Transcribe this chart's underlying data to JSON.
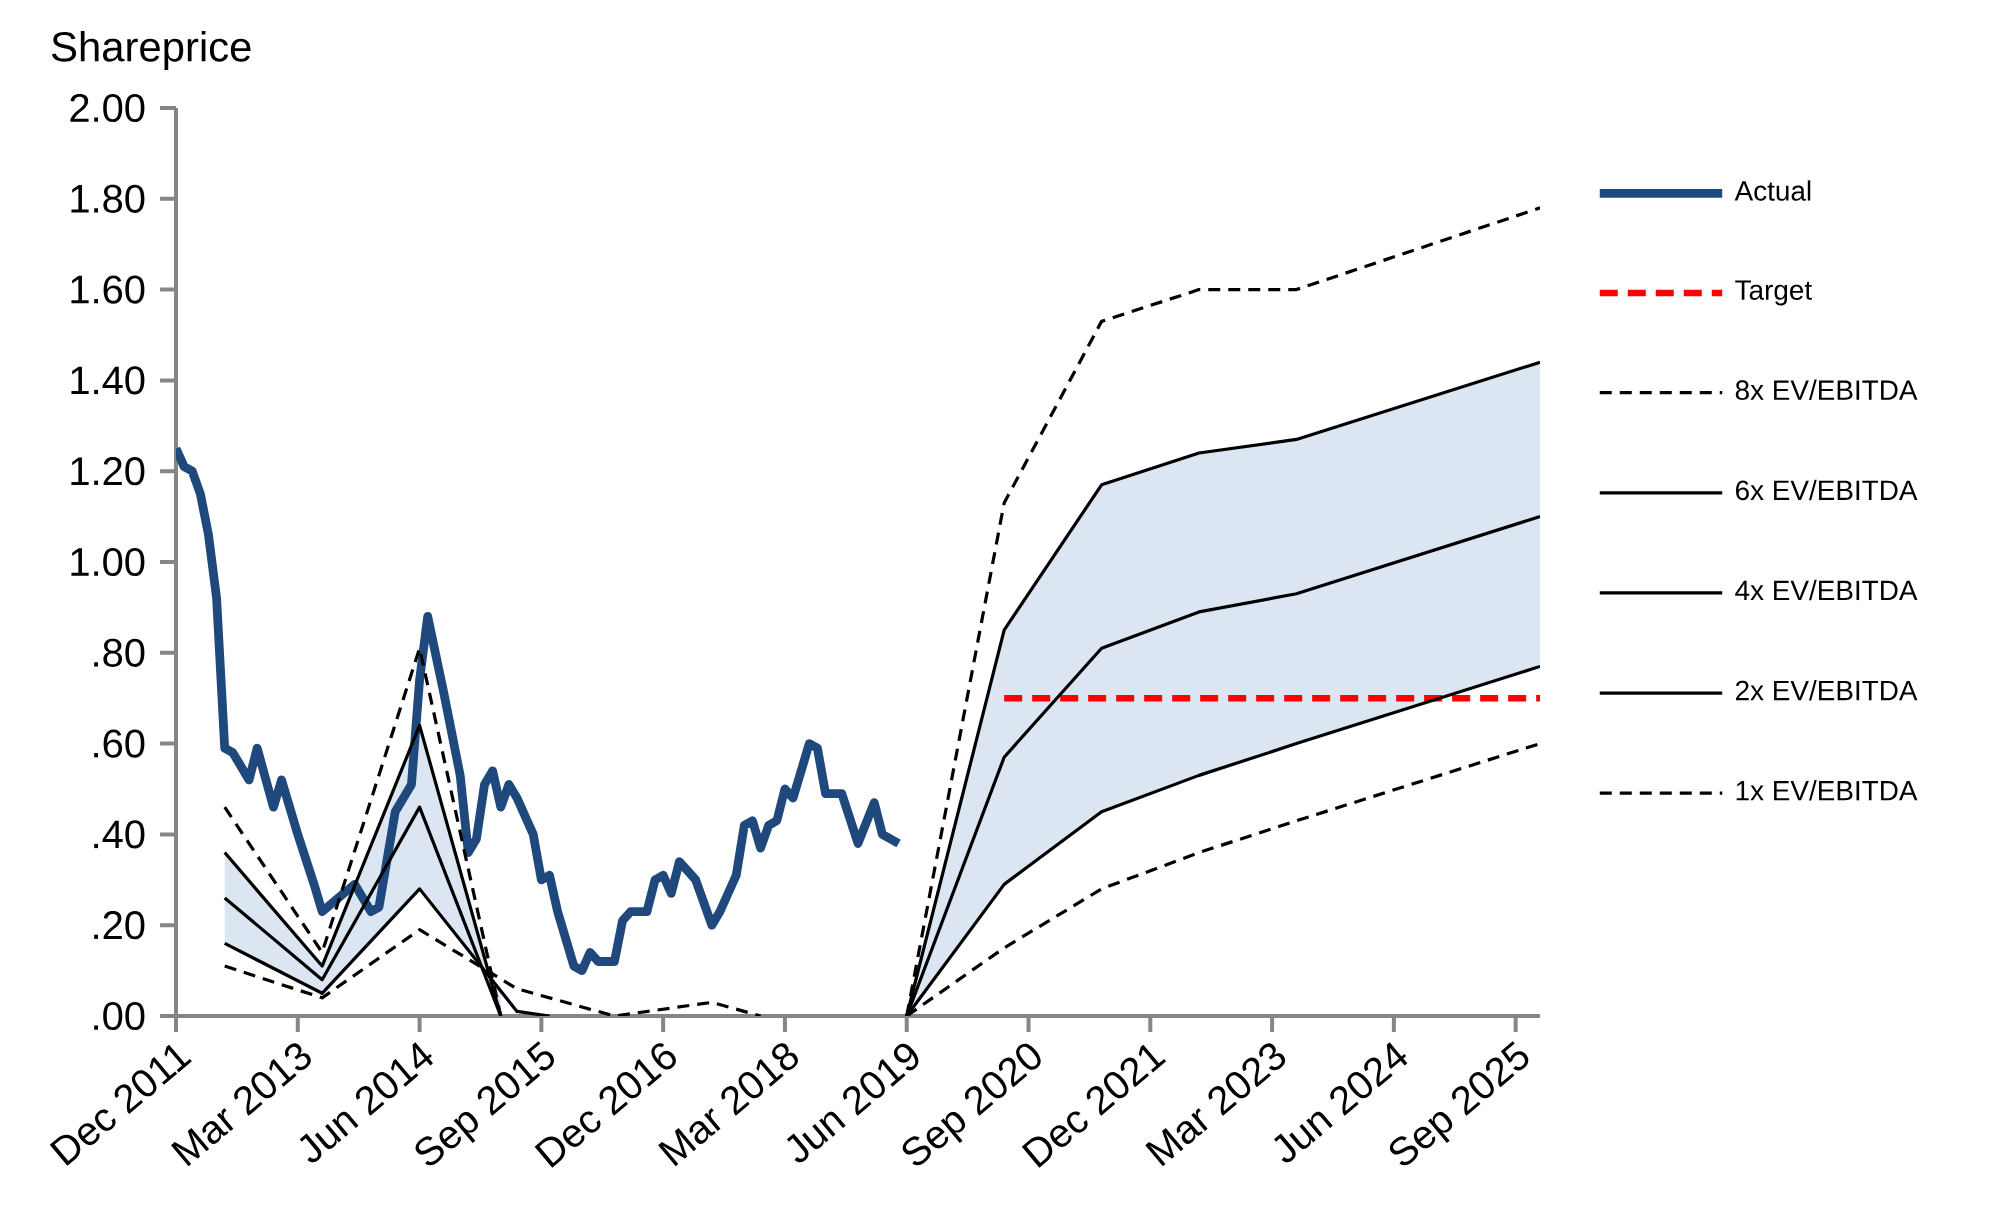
{
  "chart_data": {
    "type": "line",
    "ylabel": "Shareprice",
    "legend": "right",
    "xlim": [
      "2011-12",
      "2025-12"
    ],
    "ylim": [
      0,
      2
    ],
    "xticks": [
      {
        "value": "2011-12",
        "label": "Dec 2011"
      },
      {
        "value": "2013-03",
        "label": "Mar 2013"
      },
      {
        "value": "2014-06",
        "label": "Jun 2014"
      },
      {
        "value": "2015-09",
        "label": "Sep 2015"
      },
      {
        "value": "2016-12",
        "label": "Dec 2016"
      },
      {
        "value": "2018-03",
        "label": "Mar 2018"
      },
      {
        "value": "2019-06",
        "label": "Jun 2019"
      },
      {
        "value": "2020-09",
        "label": "Sep 2020"
      },
      {
        "value": "2021-12",
        "label": "Dec 2021"
      },
      {
        "value": "2023-03",
        "label": "Mar 2023"
      },
      {
        "value": "2024-06",
        "label": "Jun 2024"
      },
      {
        "value": "2025-09",
        "label": "Sep 2025"
      }
    ],
    "yticks": [
      {
        "value": 0,
        "label": ".00"
      },
      {
        "value": 0.2,
        "label": ".20"
      },
      {
        "value": 0.4,
        "label": ".40"
      },
      {
        "value": 0.6,
        "label": ".60"
      },
      {
        "value": 0.8,
        "label": ".80"
      },
      {
        "value": 1.0,
        "label": "1.00"
      },
      {
        "value": 1.2,
        "label": "1.20"
      },
      {
        "value": 1.4,
        "label": "1.40"
      },
      {
        "value": 1.6,
        "label": "1.60"
      },
      {
        "value": 1.8,
        "label": "1.80"
      },
      {
        "value": 2.0,
        "label": "2.00"
      }
    ],
    "series": [
      {
        "name": "Actual",
        "color": "#1f497d",
        "line_style": "solid",
        "x": [
          "2011-12",
          "2012-01",
          "2012-02",
          "2012-03",
          "2012-04",
          "2012-05",
          "2012-06",
          "2012-07",
          "2012-09",
          "2012-10",
          "2012-12",
          "2013-01",
          "2013-03",
          "2013-05",
          "2013-06",
          "2013-08",
          "2013-10",
          "2013-12",
          "2014-01",
          "2014-03",
          "2014-05",
          "2014-06",
          "2014-07",
          "2014-09",
          "2014-11",
          "2014-12",
          "2015-01",
          "2015-02",
          "2015-03",
          "2015-04",
          "2015-05",
          "2015-06",
          "2015-08",
          "2015-09",
          "2015-10",
          "2015-11",
          "2016-01",
          "2016-02",
          "2016-03",
          "2016-04",
          "2016-06",
          "2016-07",
          "2016-08",
          "2016-10",
          "2016-11",
          "2016-12",
          "2017-01",
          "2017-02",
          "2017-04",
          "2017-06",
          "2017-07",
          "2017-09",
          "2017-10",
          "2017-11",
          "2017-12",
          "2018-01",
          "2018-02",
          "2018-03",
          "2018-04",
          "2018-06",
          "2018-07",
          "2018-08",
          "2018-10",
          "2018-12",
          "2019-02",
          "2019-03",
          "2019-05"
        ],
        "values": [
          1.25,
          1.21,
          1.2,
          1.15,
          1.06,
          0.92,
          0.59,
          0.58,
          0.52,
          0.59,
          0.46,
          0.52,
          0.4,
          0.29,
          0.23,
          0.26,
          0.29,
          0.23,
          0.24,
          0.45,
          0.51,
          0.74,
          0.88,
          0.71,
          0.53,
          0.36,
          0.39,
          0.51,
          0.54,
          0.46,
          0.51,
          0.48,
          0.4,
          0.3,
          0.31,
          0.23,
          0.11,
          0.1,
          0.14,
          0.12,
          0.12,
          0.21,
          0.23,
          0.23,
          0.3,
          0.31,
          0.27,
          0.34,
          0.3,
          0.2,
          0.23,
          0.31,
          0.42,
          0.43,
          0.37,
          0.42,
          0.43,
          0.5,
          0.48,
          0.6,
          0.59,
          0.49,
          0.49,
          0.38,
          0.47,
          0.4,
          0.38
        ]
      },
      {
        "name": "Target",
        "color": "#ff0000",
        "line_style": "dashed",
        "x": [
          "2020-06",
          "2025-12"
        ],
        "values": [
          0.7,
          0.7
        ]
      },
      {
        "name": "8x EV/EBITDA",
        "color": "#000000",
        "line_style": "dashed",
        "x": [
          "2012-06",
          "2013-06",
          "2014-06",
          "2015-04",
          "2017-06",
          "2019-06",
          "2020-06",
          "2021-06",
          "2022-06",
          "2023-06",
          "2025-12"
        ],
        "values": [
          0.46,
          0.14,
          0.81,
          0,
          null,
          0,
          1.13,
          1.53,
          1.6,
          1.6,
          1.78
        ]
      },
      {
        "name": "6x EV/EBITDA",
        "color": "#000000",
        "line_style": "solid",
        "x": [
          "2012-06",
          "2013-06",
          "2014-06",
          "2015-04",
          "2017-06",
          "2019-06",
          "2020-06",
          "2021-06",
          "2022-06",
          "2023-06",
          "2025-12"
        ],
        "values": [
          0.36,
          0.11,
          0.64,
          0,
          null,
          0,
          0.85,
          1.17,
          1.24,
          1.27,
          1.44
        ]
      },
      {
        "name": "4x EV/EBITDA",
        "color": "#000000",
        "line_style": "solid",
        "x": [
          "2012-06",
          "2013-06",
          "2014-06",
          "2015-04",
          "2017-06",
          "2019-06",
          "2020-06",
          "2021-06",
          "2022-06",
          "2023-06",
          "2025-12"
        ],
        "values": [
          0.26,
          0.08,
          0.46,
          0,
          null,
          0,
          0.57,
          0.81,
          0.89,
          0.93,
          1.1
        ],
        "lower": [
          0.16,
          0.05,
          0.28,
          0.05,
          null,
          0,
          0.29,
          0.45,
          0.53,
          0.6,
          0.77
        ],
        "upper": [
          0.36,
          0.11,
          0.64,
          0,
          null,
          0,
          0.85,
          1.17,
          1.24,
          1.27,
          1.44
        ]
      },
      {
        "name": "2x EV/EBITDA",
        "color": "#000000",
        "line_style": "solid",
        "x": [
          "2012-06",
          "2013-06",
          "2014-06",
          "2015-06",
          "2015-10",
          "2017-06",
          "2019-06",
          "2020-06",
          "2021-06",
          "2022-06",
          "2023-06",
          "2025-12"
        ],
        "values": [
          0.16,
          0.05,
          0.28,
          0.01,
          0,
          null,
          0,
          0.29,
          0.45,
          0.53,
          0.6,
          0.77
        ]
      },
      {
        "name": "1x EV/EBITDA",
        "color": "#000000",
        "line_style": "dashed",
        "x": [
          "2012-06",
          "2013-06",
          "2014-06",
          "2015-06",
          "2016-06",
          "2017-06",
          "2017-12",
          "2018-06",
          "2019-06",
          "2020-06",
          "2021-06",
          "2022-06",
          "2023-06",
          "2025-12"
        ],
        "values": [
          0.11,
          0.04,
          0.19,
          0.06,
          0,
          0.03,
          0,
          null,
          0,
          0.15,
          0.28,
          0.36,
          0.43,
          0.6
        ]
      }
    ]
  }
}
